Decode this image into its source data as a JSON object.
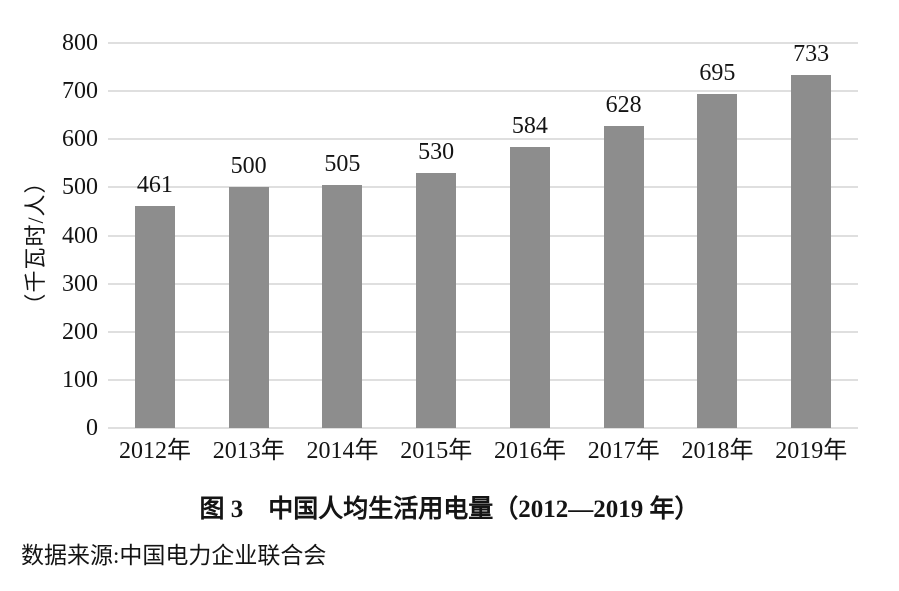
{
  "figure": {
    "caption": "图 3　中国人均生活用电量（2012—2019 年）",
    "source": "数据来源:中国电力企业联合会"
  },
  "chart_data": {
    "type": "bar",
    "title": "图 3　中国人均生活用电量（2012—2019 年）",
    "categories": [
      "2012年",
      "2013年",
      "2014年",
      "2015年",
      "2016年",
      "2017年",
      "2018年",
      "2019年"
    ],
    "values": [
      461,
      500,
      505,
      530,
      584,
      628,
      695,
      733
    ],
    "xlabel": "",
    "ylabel": "（千瓦时/人）",
    "ylim": [
      0,
      800
    ],
    "yticks": [
      0,
      100,
      200,
      300,
      400,
      500,
      600,
      700,
      800
    ],
    "grid": true,
    "legend": false,
    "bar_color": "#8d8d8d",
    "gridline_color": "#dfdfdf",
    "text_color": "#141414",
    "source_note": "数据来源:中国电力企业联合会"
  }
}
